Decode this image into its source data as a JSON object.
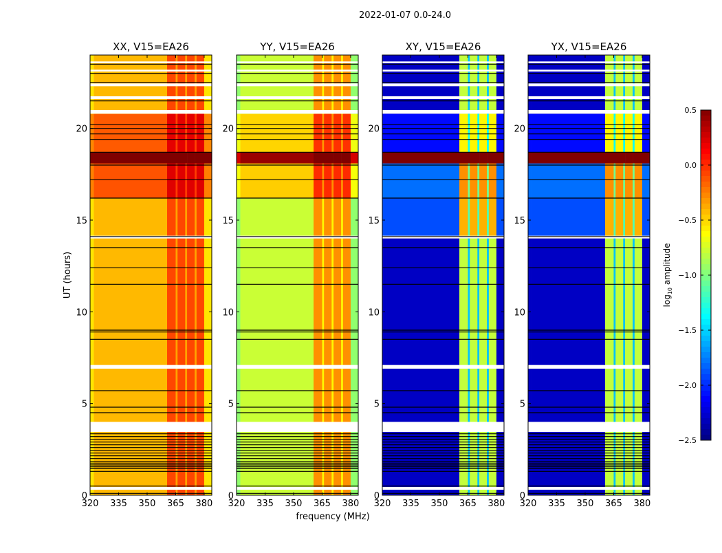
{
  "chart_data": {
    "type": "heatmap",
    "suptitle": "2022-01-07 0.0-24.0",
    "xlabel": "frequency (MHz)",
    "ylabel": "UT (hours)",
    "xlim": [
      320,
      384
    ],
    "ylim": [
      0,
      24
    ],
    "xticks": [
      320,
      335,
      350,
      365,
      380
    ],
    "yticks": [
      0,
      5,
      10,
      15,
      20
    ],
    "colorbar": {
      "label_prefix": "log",
      "label_sub": "10",
      "label_suffix": " amplitude",
      "range": [
        -2.5,
        0.5
      ],
      "ticks": [
        "0.5",
        "0.0",
        "−0.5",
        "−1.0",
        "−1.5",
        "−2.0",
        "−2.5"
      ],
      "tick_values": [
        0.5,
        0.0,
        -0.5,
        -1.0,
        -1.5,
        -2.0,
        -2.5
      ],
      "colormap": "jet"
    },
    "panels": [
      {
        "title": "XX, V15=EA26",
        "kind": "parallel",
        "levels": {
          "base": -0.42,
          "edge": -0.55,
          "band": -0.08,
          "gap": -0.35
        }
      },
      {
        "title": "YY, V15=EA26",
        "kind": "parallel",
        "levels": {
          "base": -0.78,
          "edge": -0.95,
          "band": -0.3,
          "gap": -0.6
        }
      },
      {
        "title": "XY, V15=EA26",
        "kind": "cross",
        "levels": {
          "base": -2.3,
          "edge": -2.3,
          "band": -0.8,
          "gap": -1.55
        }
      },
      {
        "title": "YX, V15=EA26",
        "kind": "cross",
        "levels": {
          "base": -2.3,
          "edge": -2.3,
          "band": -0.8,
          "gap": -1.55
        }
      }
    ],
    "freq_columns": [
      {
        "from": 320,
        "to": 322,
        "kind": "edge"
      },
      {
        "from": 322,
        "to": 360.5,
        "kind": "base"
      },
      {
        "from": 360.5,
        "to": 365,
        "kind": "band"
      },
      {
        "from": 365,
        "to": 366,
        "kind": "gap"
      },
      {
        "from": 366,
        "to": 370,
        "kind": "band"
      },
      {
        "from": 370,
        "to": 371,
        "kind": "gap"
      },
      {
        "from": 371,
        "to": 375,
        "kind": "band"
      },
      {
        "from": 375,
        "to": 376,
        "kind": "gap"
      },
      {
        "from": 376,
        "to": 380,
        "kind": "band"
      },
      {
        "from": 380,
        "to": 384,
        "kind": "edge"
      }
    ],
    "time_segments": [
      {
        "from": 0,
        "to": 3.45,
        "parallel": 0.0,
        "cross": 0.0
      },
      {
        "from": 3.45,
        "to": 14.15,
        "parallel": 0.0,
        "cross": 0.0
      },
      {
        "from": 14.15,
        "to": 16.2,
        "parallel": 0.0,
        "cross": 0.4
      },
      {
        "from": 16.2,
        "to": 18.1,
        "parallel": 0.3,
        "cross": 0.5
      },
      {
        "from": 18.1,
        "to": 18.7,
        "parallel": 1.2,
        "cross": 3.0
      },
      {
        "from": 18.7,
        "to": 20.8,
        "parallel": 0.28,
        "cross": 0.2
      },
      {
        "from": 20.8,
        "to": 24,
        "parallel": 0.0,
        "cross": 0.0
      }
    ],
    "flagged_intervals": [
      [
        0.3,
        0.45
      ],
      [
        3.45,
        4.0
      ],
      [
        6.9,
        7.1
      ],
      [
        14.0,
        14.15
      ],
      [
        20.8,
        21.0
      ],
      [
        21.6,
        21.75
      ],
      [
        22.3,
        22.45
      ],
      [
        23.1,
        23.2
      ],
      [
        23.55,
        23.65
      ]
    ],
    "black_lines": [
      0.1,
      0.5,
      1.3,
      1.45,
      1.55,
      1.65,
      1.75,
      1.85,
      2.0,
      2.15,
      2.3,
      2.45,
      2.6,
      2.75,
      2.9,
      3.05,
      3.2,
      3.35,
      4.5,
      4.8,
      5.7,
      8.5,
      8.9,
      9.0,
      11.5,
      12.4,
      13.5,
      14.1,
      16.2,
      17.2,
      18.0,
      18.7,
      19.4,
      19.7,
      20.0,
      20.2,
      21.5,
      22.5,
      23.0,
      23.5
    ]
  }
}
